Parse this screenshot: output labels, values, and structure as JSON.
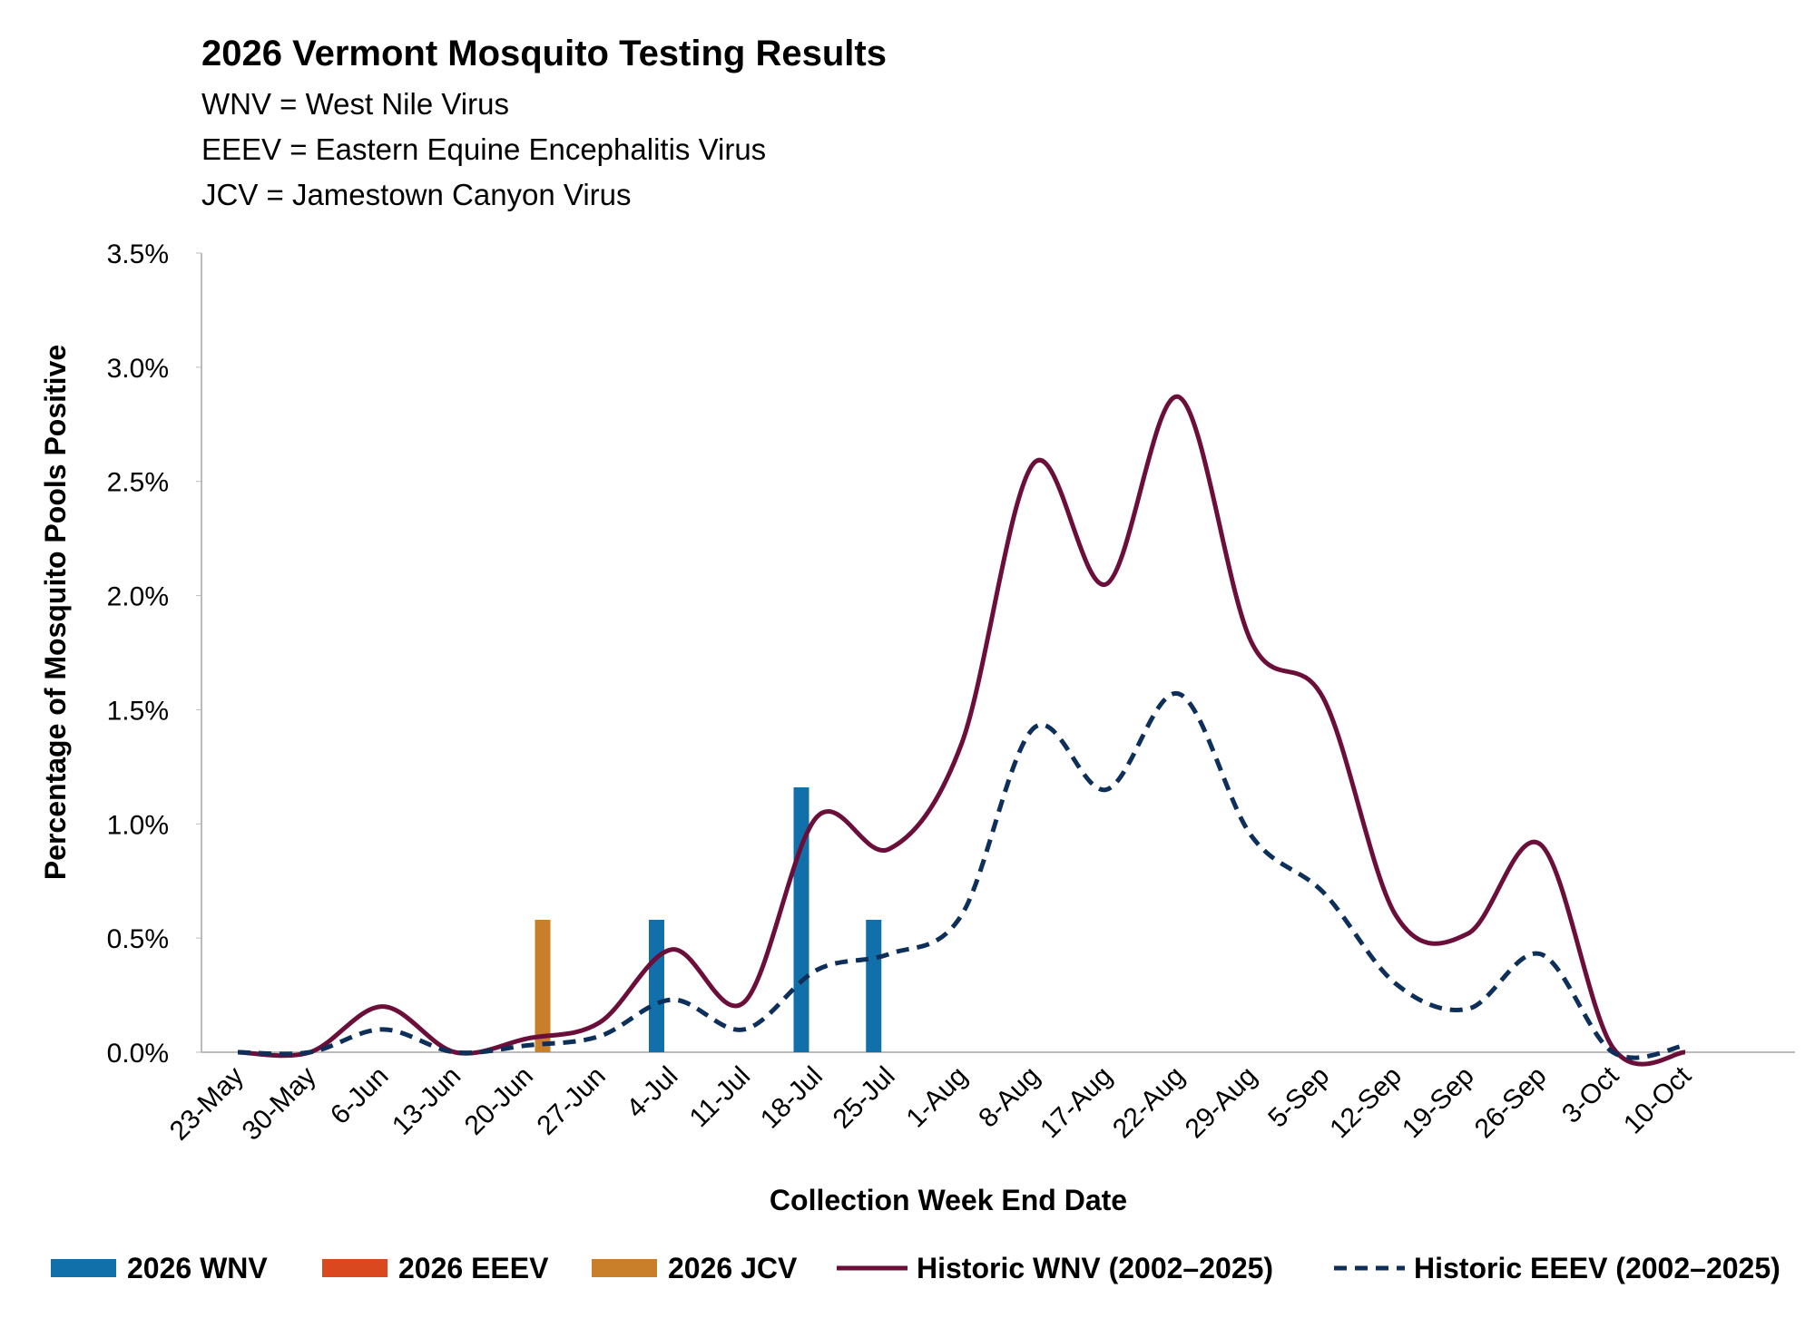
{
  "chart_data": {
    "type": "bar-line",
    "title": "2026 Vermont Mosquito Testing Results",
    "subtitle_lines": [
      "WNV = West Nile Virus",
      "EEEV = Eastern Equine Encephalitis Virus",
      "JCV = Jamestown Canyon Virus"
    ],
    "x_label": "Collection Week End Date",
    "y_label": "Percentage of Mosquito Pools Positive",
    "categories": [
      "23-May",
      "30-May",
      "6-Jun",
      "13-Jun",
      "20-Jun",
      "27-Jun",
      "4-Jul",
      "11-Jul",
      "18-Jul",
      "25-Jul",
      "1-Aug",
      "8-Aug",
      "17-Aug",
      "22-Aug",
      "29-Aug",
      "5-Sep",
      "12-Sep",
      "19-Sep",
      "26-Sep",
      "3-Oct",
      "10-Oct"
    ],
    "ylim": [
      0,
      3.5
    ],
    "yticks": [
      {
        "value": 0,
        "label": "0.0%"
      },
      {
        "value": 0.5,
        "label": "0.5%"
      },
      {
        "value": 1,
        "label": "1.0%"
      },
      {
        "value": 1.5,
        "label": "1.5%"
      },
      {
        "value": 2,
        "label": "2.0%"
      },
      {
        "value": 2.5,
        "label": "2.5%"
      },
      {
        "value": 3,
        "label": "3.0%"
      },
      {
        "value": 3.5,
        "label": "3.5%"
      }
    ],
    "series": [
      {
        "name": "2026 WNV",
        "kind": "bar",
        "color": "#1170aa",
        "values": [
          0,
          0,
          0,
          0,
          0,
          0,
          0.58,
          0,
          1.16,
          0.58,
          0,
          0,
          0,
          0,
          0,
          0,
          0,
          0,
          0,
          0,
          0
        ]
      },
      {
        "name": "2026 EEEV",
        "kind": "bar",
        "color": "#d9481f",
        "values": [
          0,
          0,
          0,
          0,
          0,
          0,
          0,
          0,
          0,
          0,
          0,
          0,
          0,
          0,
          0,
          0,
          0,
          0,
          0,
          0,
          0
        ]
      },
      {
        "name": "2026 JCV",
        "kind": "bar",
        "color": "#c97f2a",
        "values": [
          0,
          0,
          0,
          0,
          0.58,
          0,
          0,
          0,
          0,
          0,
          0,
          0,
          0,
          0,
          0,
          0,
          0,
          0,
          0,
          0,
          0
        ]
      },
      {
        "name": "Historic WNV (2002–2025)",
        "kind": "line",
        "color": "#6b0f3a",
        "values": [
          0,
          0,
          0.2,
          0,
          0.06,
          0.13,
          0.45,
          0.22,
          1.03,
          0.89,
          1.35,
          2.58,
          2.05,
          2.87,
          1.8,
          1.55,
          0.6,
          0.52,
          0.91,
          0.02,
          0
        ]
      },
      {
        "name": "Historic EEEV (2002–2025)",
        "kind": "line",
        "dashed": true,
        "color": "#0e2f5a",
        "values": [
          0,
          0,
          0.1,
          0,
          0.03,
          0.07,
          0.23,
          0.1,
          0.36,
          0.43,
          0.6,
          1.42,
          1.15,
          1.57,
          0.95,
          0.7,
          0.3,
          0.19,
          0.43,
          0,
          0.03
        ]
      }
    ]
  }
}
